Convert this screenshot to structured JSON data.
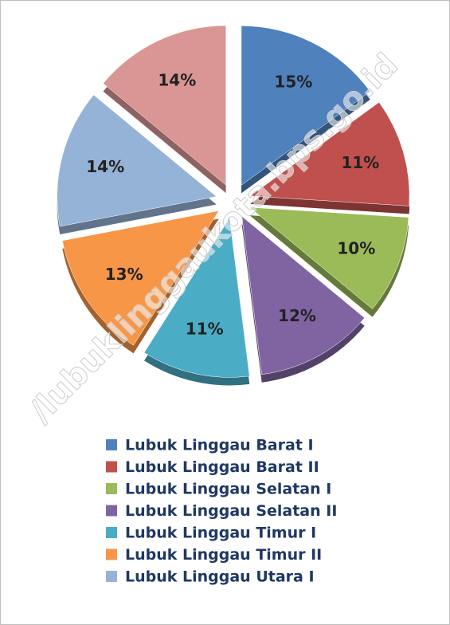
{
  "chart_data": {
    "type": "pie",
    "watermark": "/lubuklinggaukota.bps.go.id",
    "categories": [
      "Lubuk Linggau Barat I",
      "Lubuk Linggau Barat II",
      "Lubuk Linggau Selatan I",
      "Lubuk Linggau Selatan II",
      "Lubuk Linggau Timur I",
      "Lubuk Linggau Timur II",
      "Lubuk Linggau Utara I",
      null
    ],
    "values": [
      15,
      11,
      10,
      12,
      11,
      13,
      14,
      14
    ],
    "value_labels": [
      "15%",
      "11%",
      "10%",
      "12%",
      "11%",
      "13%",
      "14%",
      "14%"
    ],
    "colors": [
      "#4f81bd",
      "#c0504d",
      "#9bbb59",
      "#8064a2",
      "#4bacc6",
      "#f79646",
      "#95b3d7",
      "#d99694"
    ],
    "legend": "bottom"
  }
}
